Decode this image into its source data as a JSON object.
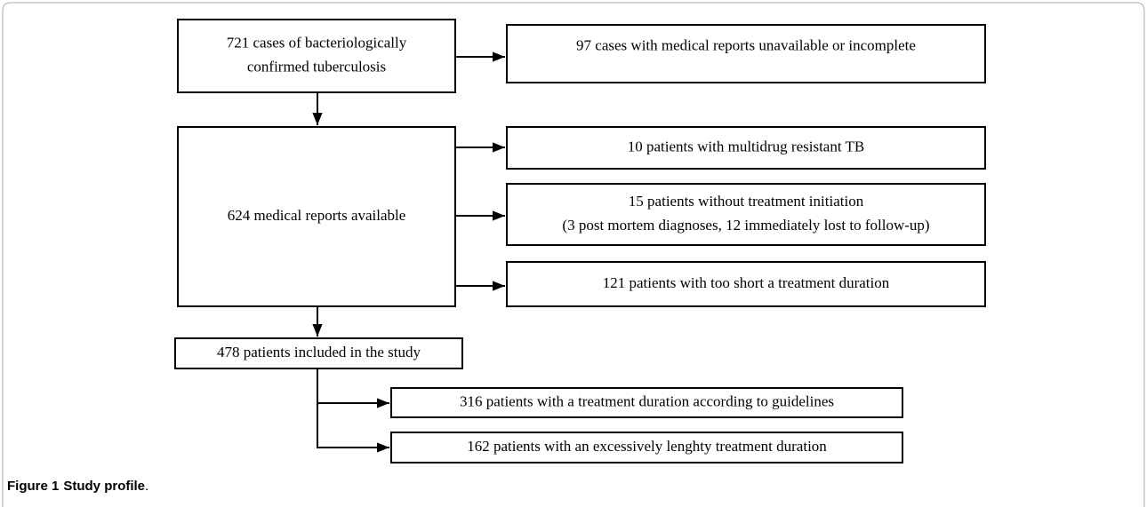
{
  "nodes": [
    {
      "lines": [
        "721 cases of bacteriologically",
        "confirmed tuberculosis"
      ]
    },
    {
      "lines": [
        "97 cases with medical reports unavailable or incomplete"
      ]
    },
    {
      "lines": [
        "624 medical reports available"
      ]
    },
    {
      "lines": [
        "10 patients with multidrug resistant TB"
      ]
    },
    {
      "lines": [
        "15 patients without treatment initiation",
        "(3 post mortem diagnoses, 12 immediately lost to follow-up)"
      ]
    },
    {
      "lines": [
        "121 patients with too short a treatment duration"
      ]
    },
    {
      "lines": [
        "478 patients included in the study"
      ]
    },
    {
      "lines": [
        "316 patients with a treatment duration according to guidelines"
      ]
    },
    {
      "lines": [
        "162 patients with an excessively lenghty treatment duration"
      ]
    }
  ],
  "caption": {
    "label": "Figure 1",
    "title": "Study profile",
    "end": "."
  }
}
